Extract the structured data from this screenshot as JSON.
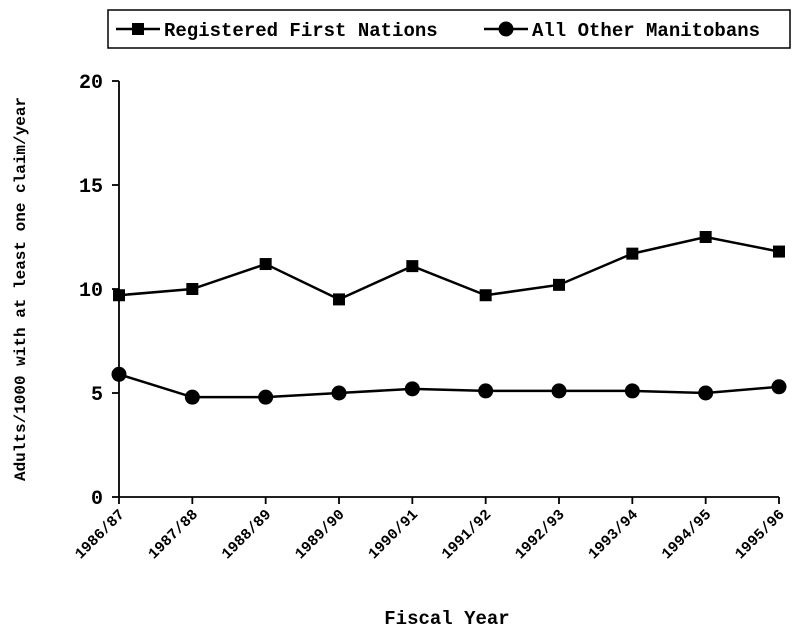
{
  "chart_data": {
    "type": "line",
    "title": "",
    "xlabel": "Fiscal Year",
    "ylabel": "Adults/1000 with at least one claim/year",
    "ylim": [
      0,
      20
    ],
    "yticks": [
      "0",
      "5",
      "10",
      "15",
      "20"
    ],
    "grid": false,
    "legend_position": "top",
    "categories": [
      "1986/87",
      "1987/88",
      "1988/89",
      "1989/90",
      "1990/91",
      "1991/92",
      "1992/93",
      "1993/94",
      "1994/95",
      "1995/96"
    ],
    "series": [
      {
        "name": "Registered First Nations",
        "marker": "square",
        "color": "#000000",
        "values": [
          9.7,
          10.0,
          11.2,
          9.5,
          11.1,
          9.7,
          10.2,
          11.7,
          12.5,
          11.8
        ]
      },
      {
        "name": "All Other Manitobans",
        "marker": "circle",
        "color": "#000000",
        "values": [
          5.9,
          4.8,
          4.8,
          5.0,
          5.2,
          5.1,
          5.1,
          5.1,
          5.0,
          5.3
        ]
      }
    ]
  }
}
